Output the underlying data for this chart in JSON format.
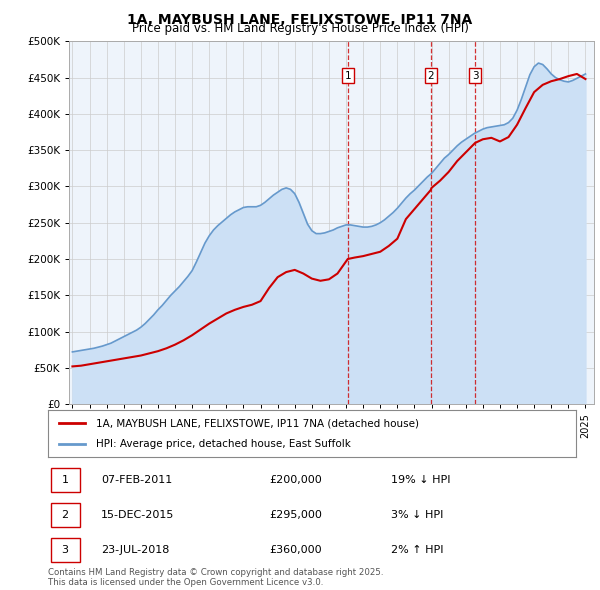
{
  "title": "1A, MAYBUSH LANE, FELIXSTOWE, IP11 7NA",
  "subtitle": "Price paid vs. HM Land Registry's House Price Index (HPI)",
  "ylim": [
    0,
    500000
  ],
  "yticks": [
    0,
    50000,
    100000,
    150000,
    200000,
    250000,
    300000,
    350000,
    400000,
    450000,
    500000
  ],
  "ytick_labels": [
    "£0",
    "£50K",
    "£100K",
    "£150K",
    "£200K",
    "£250K",
    "£300K",
    "£350K",
    "£400K",
    "£450K",
    "£500K"
  ],
  "xlim_start": 1994.8,
  "xlim_end": 2025.5,
  "sale_color": "#cc0000",
  "hpi_color": "#6699cc",
  "hpi_fill_color": "#cce0f5",
  "marker_color": "#cc0000",
  "grid_color": "#cccccc",
  "bg_color": "#eef4fb",
  "legend_label_red": "1A, MAYBUSH LANE, FELIXSTOWE, IP11 7NA (detached house)",
  "legend_label_blue": "HPI: Average price, detached house, East Suffolk",
  "transactions": [
    {
      "num": 1,
      "date": "07-FEB-2011",
      "year": 2011.1,
      "price": 200000,
      "pct": "19%",
      "dir": "↓"
    },
    {
      "num": 2,
      "date": "15-DEC-2015",
      "year": 2015.95,
      "price": 295000,
      "pct": "3%",
      "dir": "↓"
    },
    {
      "num": 3,
      "date": "23-JUL-2018",
      "year": 2018.55,
      "price": 360000,
      "pct": "2%",
      "dir": "↑"
    }
  ],
  "footnote": "Contains HM Land Registry data © Crown copyright and database right 2025.\nThis data is licensed under the Open Government Licence v3.0.",
  "hpi_years": [
    1995.0,
    1995.25,
    1995.5,
    1995.75,
    1996.0,
    1996.25,
    1996.5,
    1996.75,
    1997.0,
    1997.25,
    1997.5,
    1997.75,
    1998.0,
    1998.25,
    1998.5,
    1998.75,
    1999.0,
    1999.25,
    1999.5,
    1999.75,
    2000.0,
    2000.25,
    2000.5,
    2000.75,
    2001.0,
    2001.25,
    2001.5,
    2001.75,
    2002.0,
    2002.25,
    2002.5,
    2002.75,
    2003.0,
    2003.25,
    2003.5,
    2003.75,
    2004.0,
    2004.25,
    2004.5,
    2004.75,
    2005.0,
    2005.25,
    2005.5,
    2005.75,
    2006.0,
    2006.25,
    2006.5,
    2006.75,
    2007.0,
    2007.25,
    2007.5,
    2007.75,
    2008.0,
    2008.25,
    2008.5,
    2008.75,
    2009.0,
    2009.25,
    2009.5,
    2009.75,
    2010.0,
    2010.25,
    2010.5,
    2010.75,
    2011.0,
    2011.25,
    2011.5,
    2011.75,
    2012.0,
    2012.25,
    2012.5,
    2012.75,
    2013.0,
    2013.25,
    2013.5,
    2013.75,
    2014.0,
    2014.25,
    2014.5,
    2014.75,
    2015.0,
    2015.25,
    2015.5,
    2015.75,
    2016.0,
    2016.25,
    2016.5,
    2016.75,
    2017.0,
    2017.25,
    2017.5,
    2017.75,
    2018.0,
    2018.25,
    2018.5,
    2018.75,
    2019.0,
    2019.25,
    2019.5,
    2019.75,
    2020.0,
    2020.25,
    2020.5,
    2020.75,
    2021.0,
    2021.25,
    2021.5,
    2021.75,
    2022.0,
    2022.25,
    2022.5,
    2022.75,
    2023.0,
    2023.25,
    2023.5,
    2023.75,
    2024.0,
    2024.25,
    2024.5,
    2024.75,
    2025.0
  ],
  "hpi_values": [
    72000,
    73000,
    74000,
    75000,
    76000,
    77000,
    78500,
    80000,
    82000,
    84000,
    87000,
    90000,
    93000,
    96000,
    99000,
    102000,
    106000,
    111000,
    117000,
    123000,
    130000,
    136000,
    143000,
    150000,
    156000,
    162000,
    169000,
    176000,
    184000,
    196000,
    209000,
    222000,
    232000,
    240000,
    246000,
    251000,
    256000,
    261000,
    265000,
    268000,
    271000,
    272000,
    272000,
    272000,
    274000,
    278000,
    283000,
    288000,
    292000,
    296000,
    298000,
    296000,
    290000,
    278000,
    263000,
    248000,
    239000,
    235000,
    235000,
    236000,
    238000,
    240000,
    243000,
    245000,
    247000,
    247000,
    246000,
    245000,
    244000,
    244000,
    245000,
    247000,
    250000,
    254000,
    259000,
    264000,
    270000,
    277000,
    284000,
    290000,
    295000,
    301000,
    307000,
    313000,
    318000,
    325000,
    332000,
    339000,
    344000,
    350000,
    356000,
    361000,
    365000,
    369000,
    373000,
    376000,
    379000,
    381000,
    382000,
    383000,
    384000,
    385000,
    388000,
    394000,
    405000,
    420000,
    437000,
    454000,
    465000,
    470000,
    468000,
    462000,
    455000,
    450000,
    447000,
    445000,
    444000,
    446000,
    449000,
    452000,
    455000
  ],
  "sale_years": [
    1995.0,
    1995.5,
    1996.0,
    1996.5,
    1997.0,
    1997.5,
    1998.0,
    1998.5,
    1999.0,
    1999.5,
    2000.0,
    2000.5,
    2001.0,
    2001.5,
    2002.0,
    2002.5,
    2003.0,
    2003.5,
    2004.0,
    2004.5,
    2005.0,
    2005.5,
    2006.0,
    2006.5,
    2007.0,
    2007.5,
    2008.0,
    2008.5,
    2009.0,
    2009.5,
    2010.0,
    2010.5,
    2011.1,
    2011.5,
    2012.0,
    2012.5,
    2013.0,
    2013.5,
    2014.0,
    2014.5,
    2015.95,
    2016.0,
    2016.5,
    2017.0,
    2017.5,
    2018.55,
    2019.0,
    2019.5,
    2020.0,
    2020.5,
    2021.0,
    2021.5,
    2022.0,
    2022.5,
    2023.0,
    2023.5,
    2024.0,
    2024.5,
    2025.0
  ],
  "sale_values": [
    52000,
    53000,
    55000,
    57000,
    59000,
    61000,
    63000,
    65000,
    67000,
    70000,
    73000,
    77000,
    82000,
    88000,
    95000,
    103000,
    111000,
    118000,
    125000,
    130000,
    134000,
    137000,
    142000,
    160000,
    175000,
    182000,
    185000,
    180000,
    173000,
    170000,
    172000,
    180000,
    200000,
    202000,
    204000,
    207000,
    210000,
    218000,
    228000,
    255000,
    295000,
    298000,
    308000,
    320000,
    335000,
    360000,
    365000,
    367000,
    362000,
    368000,
    385000,
    408000,
    430000,
    440000,
    445000,
    448000,
    452000,
    455000,
    448000
  ]
}
